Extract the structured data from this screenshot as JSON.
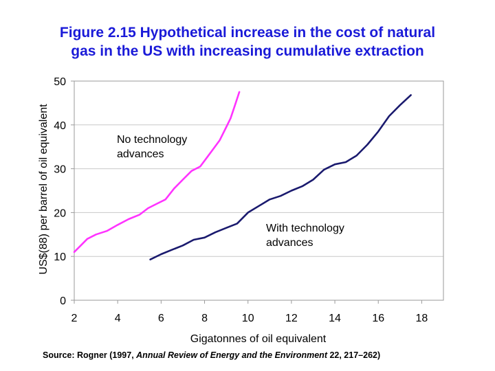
{
  "title_line1": "Figure 2.15 Hypothetical increase in the cost of natural",
  "title_line2": "gas in the US with increasing cumulative extraction",
  "source": {
    "prefix": "Source: Rogner (1997, ",
    "journal": "Annual Review of Energy and the Environment",
    "suffix": " 22, 217–262)"
  },
  "colors": {
    "title": "#1a1ad8",
    "no_tech": "#ff33ff",
    "with_tech": "#1a1a6e"
  },
  "chart_data": {
    "type": "line",
    "title": "Figure 2.15 Hypothetical increase in the cost of natural gas in the US with increasing cumulative extraction",
    "xlabel": "Gigatonnes of oil equivalent",
    "ylabel": "US$(88) per barrel of oil equivalent",
    "xlim": [
      2,
      19
    ],
    "ylim": [
      0,
      50
    ],
    "xticks": [
      2,
      4,
      6,
      8,
      10,
      12,
      14,
      16,
      18
    ],
    "yticks": [
      0,
      10,
      20,
      30,
      40,
      50
    ],
    "grid": "horizontal",
    "series": [
      {
        "name": "No technology advances",
        "label_lines": [
          "No technology",
          "advances"
        ],
        "color": "#ff33ff",
        "x": [
          2.0,
          2.3,
          2.6,
          3.0,
          3.5,
          4.0,
          4.5,
          5.0,
          5.4,
          5.8,
          6.2,
          6.6,
          7.0,
          7.4,
          7.8,
          8.1,
          8.4,
          8.7,
          9.0,
          9.2,
          9.4,
          9.6
        ],
        "y": [
          11.0,
          12.5,
          14.0,
          15.0,
          15.8,
          17.2,
          18.5,
          19.5,
          21.0,
          22.0,
          23.0,
          25.5,
          27.5,
          29.5,
          30.5,
          32.5,
          34.5,
          36.5,
          39.5,
          41.5,
          44.5,
          47.5
        ]
      },
      {
        "name": "With technology advances",
        "label_lines": [
          "With technology",
          "advances"
        ],
        "color": "#1a1a6e",
        "x": [
          5.5,
          6.0,
          6.5,
          7.0,
          7.5,
          8.0,
          8.5,
          9.0,
          9.5,
          10.0,
          10.5,
          11.0,
          11.5,
          12.0,
          12.5,
          13.0,
          13.5,
          14.0,
          14.5,
          15.0,
          15.5,
          16.0,
          16.5,
          17.0,
          17.5
        ],
        "y": [
          9.3,
          10.5,
          11.5,
          12.5,
          13.8,
          14.3,
          15.5,
          16.5,
          17.5,
          20.0,
          21.5,
          23.0,
          23.8,
          25.0,
          26.0,
          27.5,
          29.8,
          31.0,
          31.5,
          33.0,
          35.5,
          38.5,
          42.0,
          44.5,
          46.8
        ]
      }
    ]
  }
}
